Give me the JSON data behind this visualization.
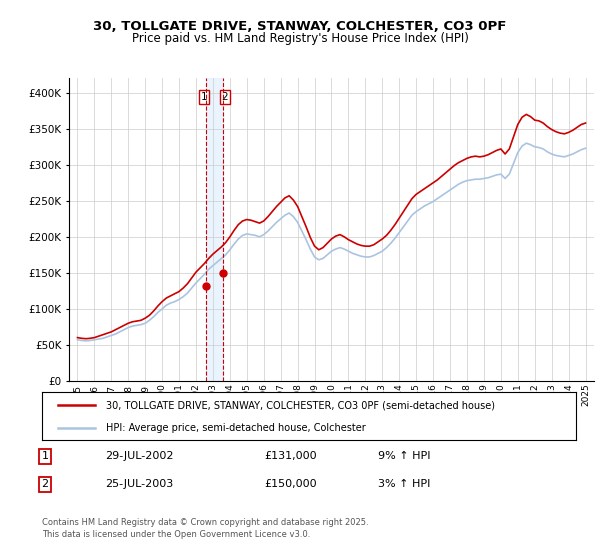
{
  "title": "30, TOLLGATE DRIVE, STANWAY, COLCHESTER, CO3 0PF",
  "subtitle": "Price paid vs. HM Land Registry's House Price Index (HPI)",
  "background_color": "#ffffff",
  "grid_color": "#cccccc",
  "hpi_color": "#aac4e0",
  "price_color": "#cc0000",
  "vline_color": "#cc0000",
  "shade_color": "#ddeeff",
  "ylim": [
    0,
    420000
  ],
  "yticks": [
    0,
    50000,
    100000,
    150000,
    200000,
    250000,
    300000,
    350000,
    400000
  ],
  "ytick_labels": [
    "£0",
    "£50K",
    "£100K",
    "£150K",
    "£200K",
    "£250K",
    "£300K",
    "£350K",
    "£400K"
  ],
  "xlim": [
    1994.5,
    2025.5
  ],
  "legend_line1": "30, TOLLGATE DRIVE, STANWAY, COLCHESTER, CO3 0PF (semi-detached house)",
  "legend_line2": "HPI: Average price, semi-detached house, Colchester",
  "table_row1": [
    "1",
    "29-JUL-2002",
    "£131,000",
    "9% ↑ HPI"
  ],
  "table_row2": [
    "2",
    "25-JUL-2003",
    "£150,000",
    "3% ↑ HPI"
  ],
  "footnote": "Contains HM Land Registry data © Crown copyright and database right 2025.\nThis data is licensed under the Open Government Licence v3.0.",
  "sale1_x": 2002.58,
  "sale2_x": 2003.58,
  "sale1_price": 131000,
  "sale2_price": 150000,
  "hpi_data": {
    "years": [
      1995,
      1995.25,
      1995.5,
      1995.75,
      1996,
      1996.25,
      1996.5,
      1996.75,
      1997,
      1997.25,
      1997.5,
      1997.75,
      1998,
      1998.25,
      1998.5,
      1998.75,
      1999,
      1999.25,
      1999.5,
      1999.75,
      2000,
      2000.25,
      2000.5,
      2000.75,
      2001,
      2001.25,
      2001.5,
      2001.75,
      2002,
      2002.25,
      2002.5,
      2002.75,
      2003,
      2003.25,
      2003.5,
      2003.75,
      2004,
      2004.25,
      2004.5,
      2004.75,
      2005,
      2005.25,
      2005.5,
      2005.75,
      2006,
      2006.25,
      2006.5,
      2006.75,
      2007,
      2007.25,
      2007.5,
      2007.75,
      2008,
      2008.25,
      2008.5,
      2008.75,
      2009,
      2009.25,
      2009.5,
      2009.75,
      2010,
      2010.25,
      2010.5,
      2010.75,
      2011,
      2011.25,
      2011.5,
      2011.75,
      2012,
      2012.25,
      2012.5,
      2012.75,
      2013,
      2013.25,
      2013.5,
      2013.75,
      2014,
      2014.25,
      2014.5,
      2014.75,
      2015,
      2015.25,
      2015.5,
      2015.75,
      2016,
      2016.25,
      2016.5,
      2016.75,
      2017,
      2017.25,
      2017.5,
      2017.75,
      2018,
      2018.25,
      2018.5,
      2018.75,
      2019,
      2019.25,
      2019.5,
      2019.75,
      2020,
      2020.25,
      2020.5,
      2020.75,
      2021,
      2021.25,
      2021.5,
      2021.75,
      2022,
      2022.25,
      2022.5,
      2022.75,
      2023,
      2023.25,
      2023.5,
      2023.75,
      2024,
      2024.25,
      2024.5,
      2024.75,
      2025
    ],
    "values": [
      57000,
      56000,
      55500,
      56000,
      57000,
      58000,
      59000,
      61000,
      63000,
      65000,
      68000,
      71000,
      74000,
      76000,
      77000,
      78000,
      80000,
      84000,
      89000,
      95000,
      100000,
      105000,
      108000,
      110000,
      113000,
      117000,
      122000,
      129000,
      136000,
      142000,
      148000,
      155000,
      160000,
      165000,
      170000,
      175000,
      182000,
      190000,
      197000,
      202000,
      204000,
      203000,
      202000,
      200000,
      203000,
      208000,
      214000,
      220000,
      225000,
      230000,
      233000,
      228000,
      220000,
      208000,
      196000,
      183000,
      172000,
      168000,
      170000,
      175000,
      180000,
      183000,
      185000,
      183000,
      180000,
      177000,
      175000,
      173000,
      172000,
      172000,
      174000,
      177000,
      180000,
      185000,
      191000,
      198000,
      206000,
      214000,
      222000,
      230000,
      235000,
      239000,
      243000,
      246000,
      249000,
      253000,
      257000,
      261000,
      265000,
      269000,
      273000,
      276000,
      278000,
      279000,
      280000,
      280000,
      281000,
      282000,
      284000,
      286000,
      287000,
      281000,
      287000,
      302000,
      317000,
      326000,
      330000,
      328000,
      325000,
      324000,
      322000,
      318000,
      315000,
      313000,
      312000,
      311000,
      313000,
      315000,
      318000,
      321000,
      323000
    ]
  },
  "price_data": {
    "years": [
      1995,
      1995.25,
      1995.5,
      1995.75,
      1996,
      1996.25,
      1996.5,
      1996.75,
      1997,
      1997.25,
      1997.5,
      1997.75,
      1998,
      1998.25,
      1998.5,
      1998.75,
      1999,
      1999.25,
      1999.5,
      1999.75,
      2000,
      2000.25,
      2000.5,
      2000.75,
      2001,
      2001.25,
      2001.5,
      2001.75,
      2002,
      2002.25,
      2002.5,
      2002.75,
      2003,
      2003.25,
      2003.5,
      2003.75,
      2004,
      2004.25,
      2004.5,
      2004.75,
      2005,
      2005.25,
      2005.5,
      2005.75,
      2006,
      2006.25,
      2006.5,
      2006.75,
      2007,
      2007.25,
      2007.5,
      2007.75,
      2008,
      2008.25,
      2008.5,
      2008.75,
      2009,
      2009.25,
      2009.5,
      2009.75,
      2010,
      2010.25,
      2010.5,
      2010.75,
      2011,
      2011.25,
      2011.5,
      2011.75,
      2012,
      2012.25,
      2012.5,
      2012.75,
      2013,
      2013.25,
      2013.5,
      2013.75,
      2014,
      2014.25,
      2014.5,
      2014.75,
      2015,
      2015.25,
      2015.5,
      2015.75,
      2016,
      2016.25,
      2016.5,
      2016.75,
      2017,
      2017.25,
      2017.5,
      2017.75,
      2018,
      2018.25,
      2018.5,
      2018.75,
      2019,
      2019.25,
      2019.5,
      2019.75,
      2020,
      2020.25,
      2020.5,
      2020.75,
      2021,
      2021.25,
      2021.5,
      2021.75,
      2022,
      2022.25,
      2022.5,
      2022.75,
      2023,
      2023.25,
      2023.5,
      2023.75,
      2024,
      2024.25,
      2024.5,
      2024.75,
      2025
    ],
    "values": [
      60000,
      59000,
      58500,
      59000,
      60000,
      62000,
      64000,
      66000,
      68000,
      71000,
      74000,
      77000,
      80000,
      82000,
      83000,
      84000,
      87000,
      91000,
      97000,
      104000,
      110000,
      115000,
      118000,
      121000,
      124000,
      129000,
      135000,
      143000,
      151000,
      157000,
      163000,
      170000,
      176000,
      181000,
      186000,
      192000,
      200000,
      209000,
      217000,
      222000,
      224000,
      223000,
      221000,
      219000,
      222000,
      228000,
      235000,
      242000,
      248000,
      254000,
      257000,
      251000,
      242000,
      228000,
      214000,
      199000,
      187000,
      182000,
      185000,
      191000,
      197000,
      201000,
      203000,
      200000,
      196000,
      193000,
      190000,
      188000,
      187000,
      187000,
      189000,
      193000,
      197000,
      202000,
      209000,
      217000,
      226000,
      235000,
      244000,
      253000,
      259000,
      263000,
      267000,
      271000,
      275000,
      279000,
      284000,
      289000,
      294000,
      299000,
      303000,
      306000,
      309000,
      311000,
      312000,
      311000,
      312000,
      314000,
      317000,
      320000,
      322000,
      315000,
      322000,
      339000,
      356000,
      366000,
      370000,
      367000,
      362000,
      361000,
      358000,
      353000,
      349000,
      346000,
      344000,
      343000,
      345000,
      348000,
      352000,
      356000,
      358000
    ]
  }
}
